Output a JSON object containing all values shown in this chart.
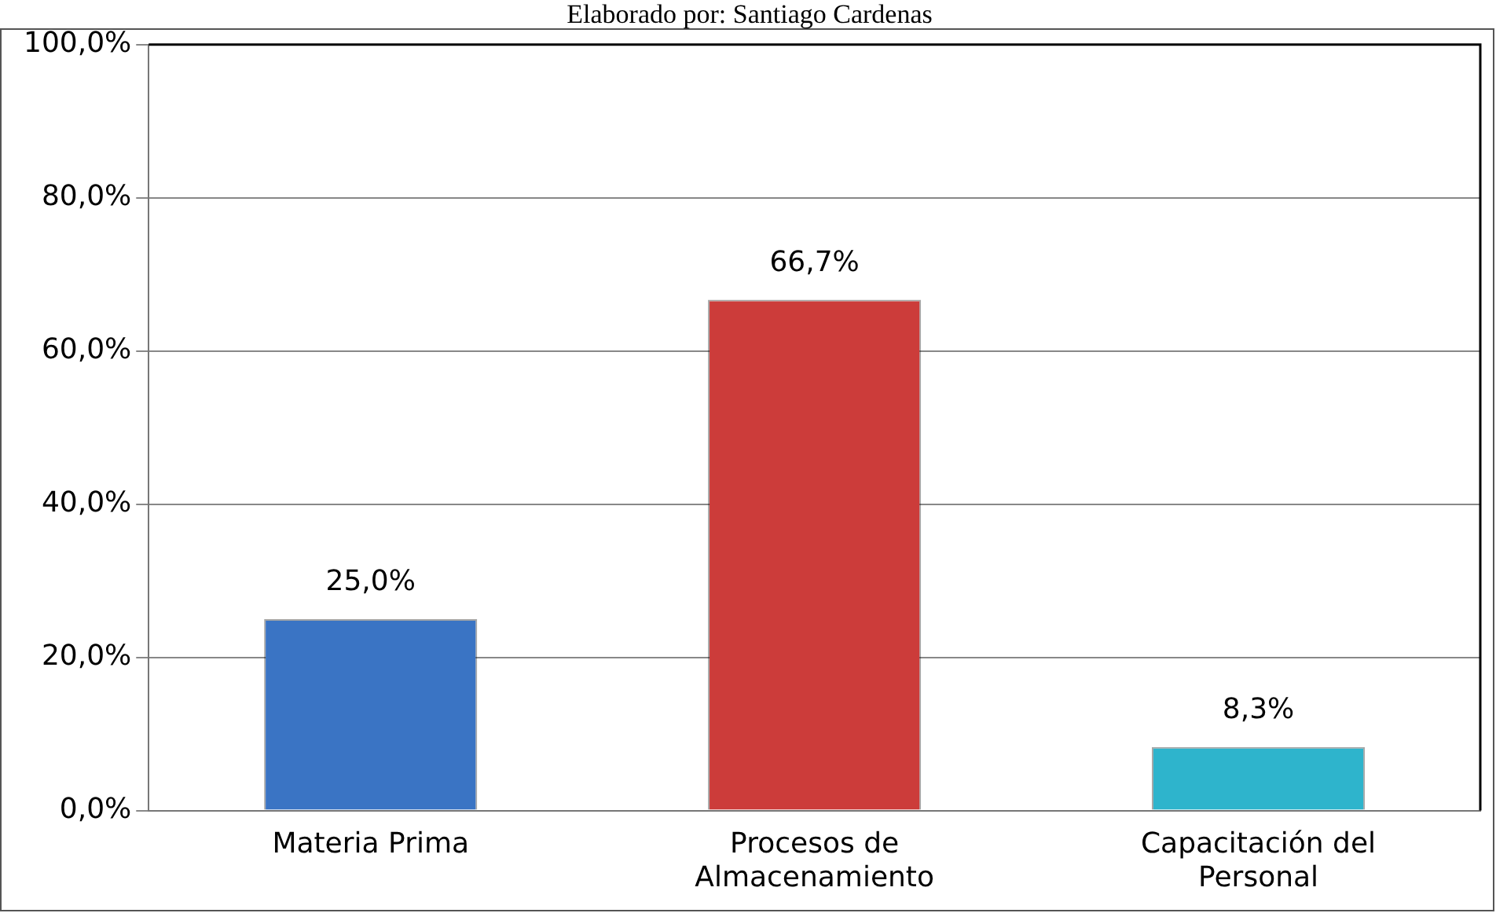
{
  "chart_data": {
    "type": "bar",
    "title": "Elaborado por: Santiago Cardenas",
    "categories": [
      "Materia Prima",
      "Procesos de Almacenamiento",
      "Capacitación del Personal"
    ],
    "colors": [
      "#3a74c4",
      "#cc3c3a",
      "#2eb4cc"
    ],
    "values": [
      25.0,
      66.7,
      8.3
    ],
    "value_labels": [
      "25,0%",
      "66,7%",
      "8,3%"
    ],
    "ylim": [
      0,
      100
    ],
    "yticks": [
      {
        "value": 0,
        "label": "0,0%"
      },
      {
        "value": 20,
        "label": "20,0%"
      },
      {
        "value": 40,
        "label": "40,0%"
      },
      {
        "value": 60,
        "label": "60,0%"
      },
      {
        "value": 80,
        "label": "80,0%"
      },
      {
        "value": 100,
        "label": "100,0%"
      }
    ],
    "grid": "y",
    "legend": false
  }
}
